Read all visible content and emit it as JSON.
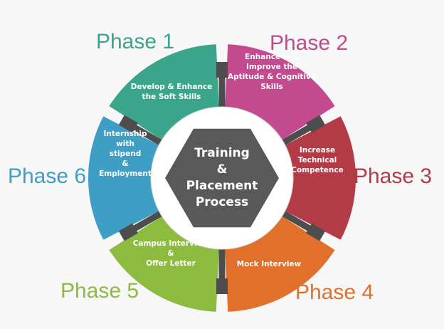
{
  "center": {
    "lines": [
      "Training",
      "&",
      "Placement",
      "Process"
    ],
    "fill": "#595959"
  },
  "phases": [
    {
      "title": "Phase 1",
      "color": "#3aa58a",
      "lines": [
        "Develop & Enhance",
        "the Soft Skills"
      ]
    },
    {
      "title": "Phase 2",
      "color": "#c44a8f",
      "lines": [
        "Enhance and",
        "Improve the",
        "Aptitude & Cognitive",
        "Skills"
      ]
    },
    {
      "title": "Phase 3",
      "color": "#b23b45",
      "lines": [
        "Increase",
        "Technical",
        "Competence"
      ]
    },
    {
      "title": "Phase 4",
      "color": "#e0702a",
      "lines": [
        "Mock Interview"
      ]
    },
    {
      "title": "Phase 5",
      "color": "#8cbb3f",
      "lines": [
        "Campus Interview",
        "&",
        "Offer Letter"
      ]
    },
    {
      "title": "Phase 6",
      "color": "#3e9ec4",
      "lines": [
        "Internship",
        "with",
        "stipend",
        "&",
        "Employment"
      ]
    }
  ],
  "connector_color": "#4d4d4d",
  "ring_color": "#ffffff"
}
